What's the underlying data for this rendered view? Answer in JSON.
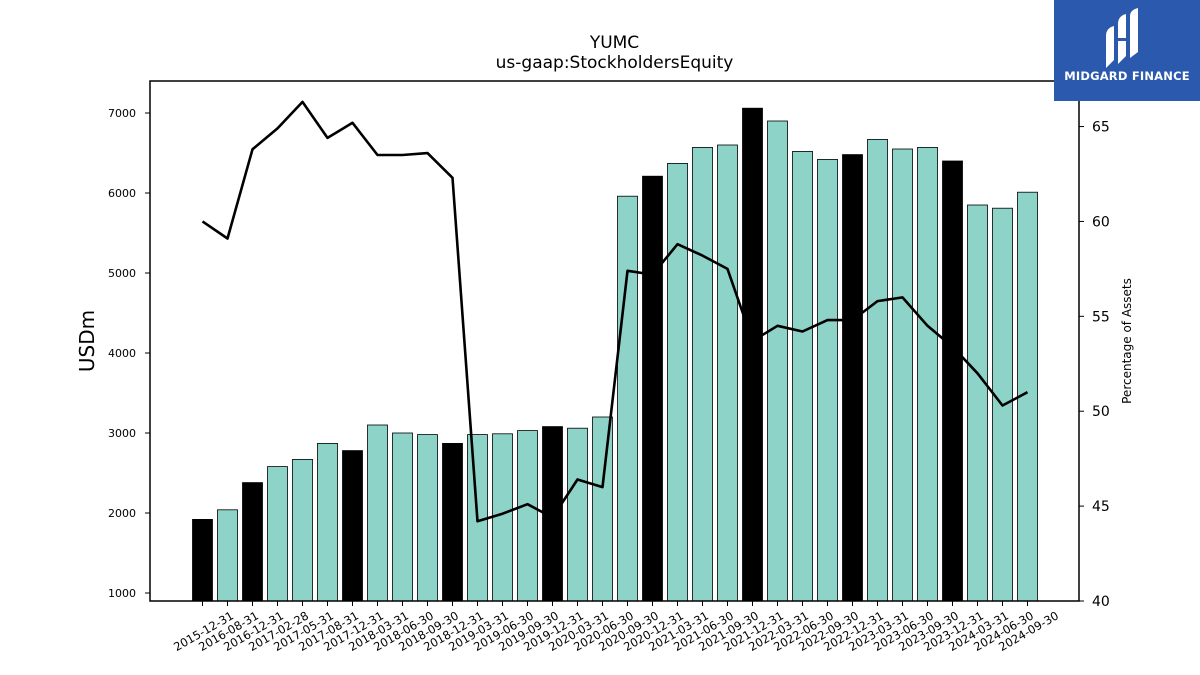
{
  "chart_data": {
    "type": "bar",
    "title": "YUMC",
    "subtitle": "us-gaap:StockholdersEquity",
    "ylabel": "USDm",
    "y2label": "Percentage of Assets",
    "ylim": [
      900,
      7400
    ],
    "y2lim": [
      40,
      67.4
    ],
    "yticks": [
      1000,
      2000,
      3000,
      4000,
      5000,
      6000,
      7000
    ],
    "y2ticks": [
      40,
      45,
      50,
      55,
      60,
      65
    ],
    "categories": [
      "2015-12-31",
      "2016-08-31",
      "2016-12-31",
      "2017-02-28",
      "2017-05-31",
      "2017-08-31",
      "2017-12-31",
      "2018-03-31",
      "2018-06-30",
      "2018-09-30",
      "2018-12-31",
      "2019-03-31",
      "2019-06-30",
      "2019-09-30",
      "2019-12-31",
      "2020-03-31",
      "2020-06-30",
      "2020-09-30",
      "2020-12-31",
      "2021-03-31",
      "2021-06-30",
      "2021-09-30",
      "2021-12-31",
      "2022-03-31",
      "2022-06-30",
      "2022-09-30",
      "2022-12-31",
      "2023-03-31",
      "2023-06-30",
      "2023-09-30",
      "2023-12-31",
      "2024-03-31",
      "2024-06-30",
      "2024-09-30"
    ],
    "values": [
      1920,
      2040,
      2380,
      2580,
      2670,
      2870,
      2780,
      3100,
      3000,
      2980,
      2870,
      2980,
      2990,
      3030,
      3080,
      3060,
      3200,
      5960,
      6210,
      6370,
      6570,
      6600,
      7060,
      6900,
      6520,
      6420,
      6480,
      6670,
      6550,
      6570,
      6400,
      5850,
      5810,
      6010
    ],
    "annual": [
      true,
      false,
      true,
      false,
      false,
      false,
      true,
      false,
      false,
      false,
      true,
      false,
      false,
      false,
      true,
      false,
      false,
      false,
      true,
      false,
      false,
      false,
      true,
      false,
      false,
      false,
      true,
      false,
      false,
      false,
      true,
      false,
      false,
      false
    ],
    "line_values": [
      60.0,
      59.1,
      63.8,
      64.9,
      66.3,
      64.4,
      65.2,
      63.5,
      63.5,
      63.6,
      62.3,
      44.2,
      44.6,
      45.1,
      44.4,
      46.4,
      46.0,
      57.4,
      57.2,
      58.8,
      58.2,
      57.5,
      53.7,
      54.5,
      54.2,
      54.8,
      54.8,
      55.8,
      56.0,
      54.5,
      53.4,
      52.0,
      50.3,
      51.0
    ],
    "colors": {
      "annual_bar": "#000000",
      "quarter_bar": "#8dd3c7",
      "line": "#000000",
      "edge": "#000000"
    }
  },
  "logo": {
    "text": "MIDGARD FINANCE",
    "color": "#2b59ad"
  }
}
